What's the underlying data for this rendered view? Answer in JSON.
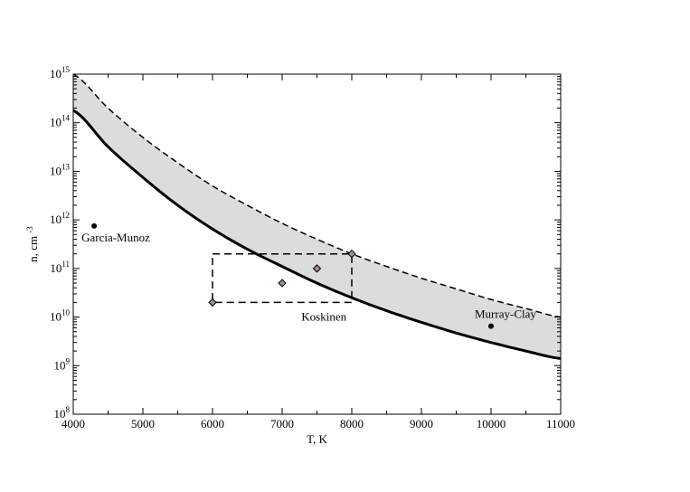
{
  "chart_data": {
    "type": "line",
    "title": "",
    "xlabel": "T, K",
    "ylabel_base": "n, cm",
    "ylabel_exp": "-3",
    "xlim": [
      4000,
      11000
    ],
    "ylim": [
      100000000.0,
      1000000000000000.0
    ],
    "yscale": "log",
    "grid": false,
    "x_ticks": [
      {
        "value": 4000,
        "label": "4000"
      },
      {
        "value": 5000,
        "label": "5000"
      },
      {
        "value": 6000,
        "label": "6000"
      },
      {
        "value": 7000,
        "label": "7000"
      },
      {
        "value": 8000,
        "label": "8000"
      },
      {
        "value": 9000,
        "label": "9000"
      },
      {
        "value": 10000,
        "label": "10000"
      },
      {
        "value": 11000,
        "label": "11000"
      }
    ],
    "y_ticks": [
      {
        "value": 100000000.0,
        "base": "10",
        "exp": "8"
      },
      {
        "value": 1000000000.0,
        "base": "10",
        "exp": "9"
      },
      {
        "value": 10000000000.0,
        "base": "10",
        "exp": "10"
      },
      {
        "value": 100000000000.0,
        "base": "10",
        "exp": "11"
      },
      {
        "value": 1000000000000.0,
        "base": "10",
        "exp": "12"
      },
      {
        "value": 10000000000000.0,
        "base": "10",
        "exp": "13"
      },
      {
        "value": 100000000000000.0,
        "base": "10",
        "exp": "14"
      },
      {
        "value": 1000000000000000.0,
        "base": "10",
        "exp": "15"
      }
    ],
    "series": [
      {
        "style": "solid",
        "x": [
          4000,
          4500,
          5000,
          5500,
          6000,
          6500,
          7000,
          7500,
          8000,
          8500,
          9000,
          9500,
          10000,
          10500,
          11000
        ],
        "y": [
          180000000000000.0,
          32000000000000.0,
          7500000000000.0,
          2000000000000.0,
          650000000000.0,
          250000000000.0,
          110000000000.0,
          50000000000.0,
          25000000000.0,
          13500000000.0,
          7800000000.0,
          4700000000.0,
          3000000000.0,
          2000000000.0,
          1400000000.0
        ]
      },
      {
        "style": "dashed",
        "x": [
          4000,
          4500,
          5000,
          5500,
          6000,
          6500,
          7000,
          7500,
          8000,
          8500,
          9000,
          9500,
          10000,
          10500,
          11000
        ],
        "y": [
          1000000000000000.0,
          200000000000000.0,
          50000000000000.0,
          15000000000000.0,
          5000000000000.0,
          2000000000000.0,
          850000000000.0,
          400000000000.0,
          200000000000.0,
          110000000000.0,
          63000000000.0,
          38000000000.0,
          23000000000.0,
          15000000000.0,
          10000000000.0
        ]
      }
    ],
    "points": [
      {
        "x": 4300,
        "y": 750000000000.0,
        "marker": "circle",
        "label": "Garcia-Munoz"
      },
      {
        "x": 10000,
        "y": 6500000000.0,
        "marker": "circle",
        "label": "Murray-Clay"
      },
      {
        "x": 6000,
        "y": 20000000000.0,
        "marker": "diamond"
      },
      {
        "x": 7000,
        "y": 50000000000.0,
        "marker": "diamond"
      },
      {
        "x": 7500,
        "y": 100000000000.0,
        "marker": "diamond"
      },
      {
        "x": 8000,
        "y": 200000000000.0,
        "marker": "diamond"
      }
    ],
    "koskinen_box": {
      "x": [
        6000,
        8000
      ],
      "y": [
        20000000000.0,
        200000000000.0
      ],
      "label": "Koskinen"
    }
  }
}
